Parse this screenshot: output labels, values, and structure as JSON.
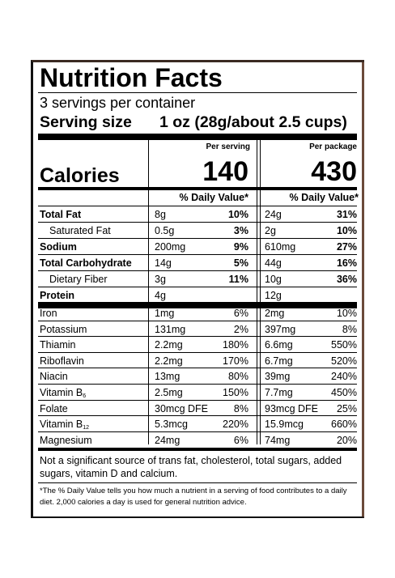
{
  "label": {
    "title": "Nutrition Facts",
    "servings_per_container": "3 servings per container",
    "serving_size_label": "Serving size",
    "serving_size_value": "1 oz (28g/about 2.5 cups)",
    "col1_header": "Per serving",
    "col2_header": "Per package",
    "calories_label": "Calories",
    "calories_per_serving": "140",
    "calories_per_package": "430",
    "dv_header": "% Daily Value*",
    "macros": [
      {
        "name": "Total Fat",
        "amt1": "8g",
        "pct1": "10%",
        "amt2": "24g",
        "pct2": "31%"
      },
      {
        "name": "Saturated Fat",
        "amt1": "0.5g",
        "pct1": "3%",
        "amt2": "2g",
        "pct2": "10%"
      },
      {
        "name": "Sodium",
        "amt1": "200mg",
        "pct1": "9%",
        "amt2": "610mg",
        "pct2": "27%"
      },
      {
        "name": "Total Carbohydrate",
        "amt1": "14g",
        "pct1": "5%",
        "amt2": "44g",
        "pct2": "16%"
      },
      {
        "name": "Dietary Fiber",
        "amt1": "3g",
        "pct1": "11%",
        "amt2": "10g",
        "pct2": "36%"
      },
      {
        "name": "Protein",
        "amt1": "4g",
        "pct1": "",
        "amt2": "12g",
        "pct2": ""
      }
    ],
    "micros": [
      {
        "name": "Iron",
        "sub": "",
        "amt1": "1mg",
        "pct1": "6%",
        "amt2": "2mg",
        "pct2": "10%"
      },
      {
        "name": "Potassium",
        "sub": "",
        "amt1": "131mg",
        "pct1": "2%",
        "amt2": "397mg",
        "pct2": "8%"
      },
      {
        "name": "Thiamin",
        "sub": "",
        "amt1": "2.2mg",
        "pct1": "180%",
        "amt2": "6.6mg",
        "pct2": "550%"
      },
      {
        "name": "Riboflavin",
        "sub": "",
        "amt1": "2.2mg",
        "pct1": "170%",
        "amt2": "6.7mg",
        "pct2": "520%"
      },
      {
        "name": "Niacin",
        "sub": "",
        "amt1": "13mg",
        "pct1": "80%",
        "amt2": "39mg",
        "pct2": "240%"
      },
      {
        "name": "Vitamin B",
        "sub": "6",
        "amt1": "2.5mg",
        "pct1": "150%",
        "amt2": "7.7mg",
        "pct2": "450%"
      },
      {
        "name": "Folate",
        "sub": "",
        "amt1": "30mcg DFE",
        "pct1": "8%",
        "amt2": "93mcg DFE",
        "pct2": "25%"
      },
      {
        "name": "Vitamin B",
        "sub": "12",
        "amt1": "5.3mcg",
        "pct1": "220%",
        "amt2": "15.9mcg",
        "pct2": "660%"
      },
      {
        "name": "Magnesium",
        "sub": "",
        "amt1": "24mg",
        "pct1": "6%",
        "amt2": "74mg",
        "pct2": "20%"
      }
    ],
    "not_significant": "Not a significant source of trans fat, cholesterol, total sugars, added sugars, vitamin D and calcium.",
    "footnote": "*The % Daily Value tells you how much a nutrient in a serving of food contributes to a daily diet. 2,000 calories a day is used for general nutrition advice."
  }
}
